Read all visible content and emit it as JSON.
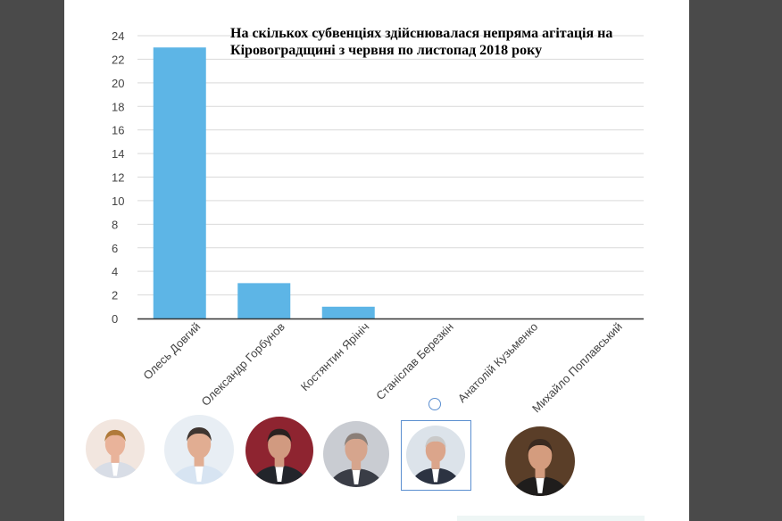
{
  "chart_data": {
    "type": "bar",
    "title": "На скількох субвенціях здійснювалася непряма агітація на Кіровоградщині з червня по листопад 2018 року",
    "categories": [
      "Олесь Довгий",
      "Олександр Горбунов",
      "Костянтин Ярініч",
      "Станіслав Березкін",
      "Анатолій Кузьменко",
      "Михайло Поплавський"
    ],
    "values": [
      23,
      3,
      1,
      0,
      0,
      0
    ],
    "ylim": [
      0,
      24
    ],
    "yticks": [
      0,
      2,
      4,
      6,
      8,
      10,
      12,
      14,
      16,
      18,
      20,
      22,
      24
    ],
    "grid": true,
    "bar_color": "#5db5e6",
    "grid_color": "#d9d9d9",
    "axis_color": "#333333"
  },
  "avatars": [
    {
      "icon": "person-portrait-icon",
      "bg": "#f2e6df",
      "skin": "#e9b39a",
      "hair": "#b07a3a",
      "suit": "#d8dde6"
    },
    {
      "icon": "person-portrait-icon",
      "bg": "#e8eef4",
      "skin": "#e1ad92",
      "hair": "#3e3530",
      "suit": "#d7e4f2"
    },
    {
      "icon": "person-portrait-icon",
      "bg": "#8e2430",
      "skin": "#d19a80",
      "hair": "#2a2220",
      "suit": "#22252b"
    },
    {
      "icon": "person-portrait-icon",
      "bg": "#c9ccd2",
      "skin": "#d6a58d",
      "hair": "#8b7f78",
      "suit": "#3a3d46"
    },
    {
      "icon": "person-portrait-icon",
      "bg": "#dce3ea",
      "skin": "#dba58b",
      "hair": "#c9c9c9",
      "suit": "#2c3342"
    },
    {
      "icon": "person-portrait-icon",
      "bg": "#5a3e28",
      "skin": "#d49c7e",
      "hair": "#3a2a20",
      "suit": "#1f1d1c"
    }
  ]
}
